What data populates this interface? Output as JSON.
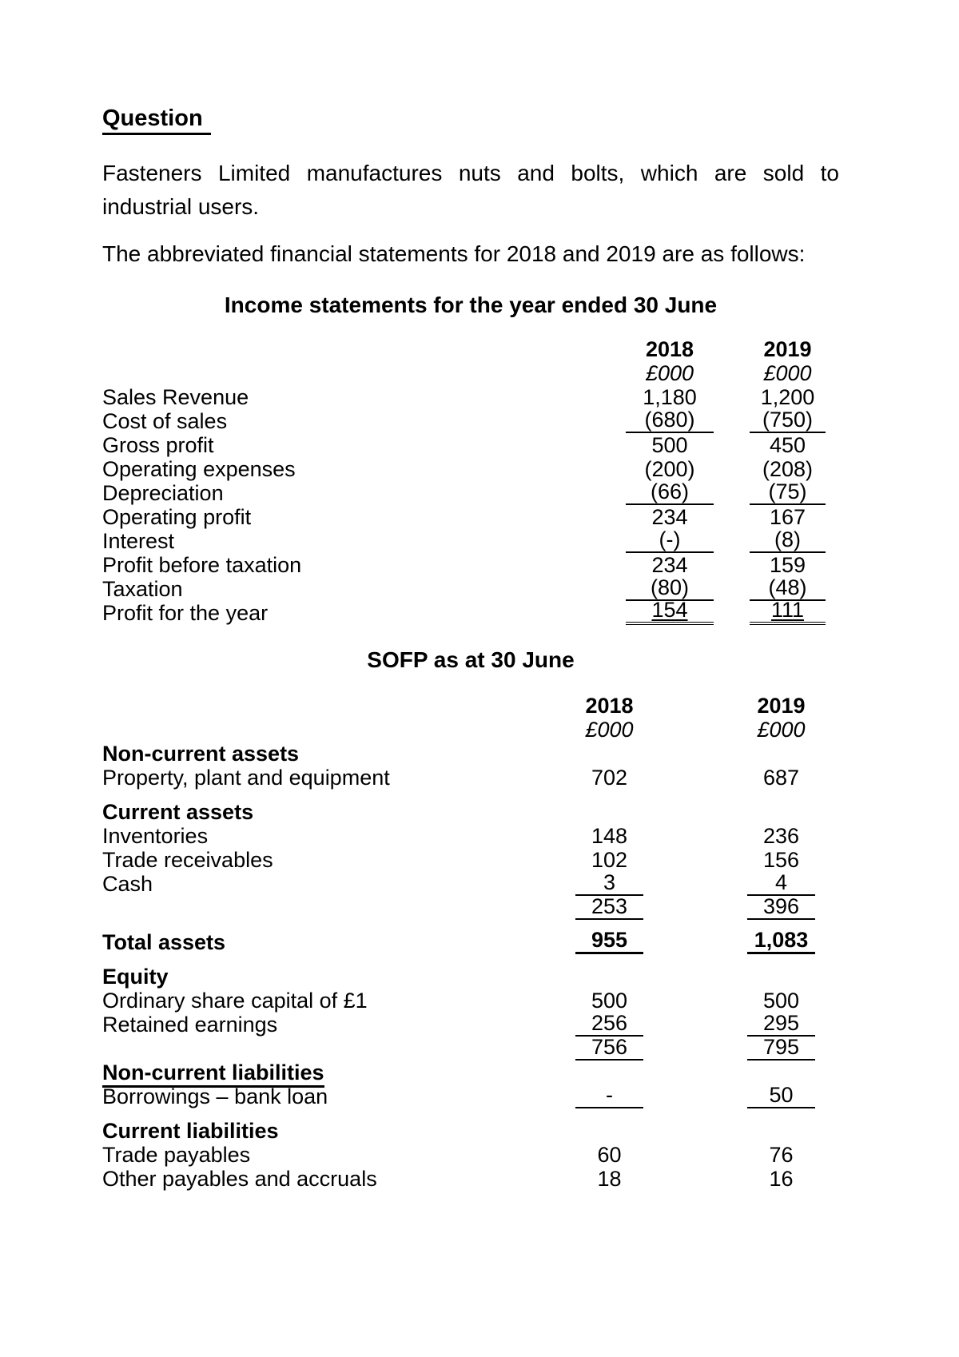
{
  "doc": {
    "heading": "Question",
    "intro": "Fasteners Limited manufactures nuts and bolts, which are sold to industrial users.",
    "statements_line": "The abbreviated financial statements for 2018 and 2019 are as follows:"
  },
  "income_statement": {
    "title": "Income statements for the year ended 30 June",
    "col_headers": [
      "2018",
      "2019"
    ],
    "unit_headers": [
      "£000",
      "£000"
    ],
    "rows": [
      {
        "label": "Sales Revenue",
        "v2018": "1,180",
        "v2019": "1,200",
        "label_style": "plain",
        "value_style": "plain",
        "spaced": false
      },
      {
        "label": "Cost of sales",
        "v2018": "(680)",
        "v2019": "(750)",
        "label_style": "plain",
        "value_style": "underline",
        "spaced": false
      },
      {
        "label": "Gross profit",
        "v2018": "500",
        "v2019": "450",
        "label_style": "plain",
        "value_style": "plain",
        "spaced": false
      },
      {
        "label": "Operating expenses",
        "v2018": "(200)",
        "v2019": "(208)",
        "label_style": "plain",
        "value_style": "plain",
        "spaced": false
      },
      {
        "label": "Depreciation",
        "v2018": "(66)",
        "v2019": "(75)",
        "label_style": "plain",
        "value_style": "underline",
        "spaced": false
      },
      {
        "label": "Operating profit",
        "v2018": "234",
        "v2019": "167",
        "label_style": "plain",
        "value_style": "plain",
        "spaced": false
      },
      {
        "label": "Interest",
        "v2018": "(-)",
        "v2019": "(8)",
        "label_style": "plain",
        "value_style": "underline",
        "spaced": false
      },
      {
        "label": "Profit before taxation",
        "v2018": "234",
        "v2019": "159",
        "label_style": "plain",
        "value_style": "plain",
        "spaced": false
      },
      {
        "label": "Taxation",
        "v2018": "(80)",
        "v2019": "(48)",
        "label_style": "plain",
        "value_style": "underline",
        "spaced": false
      },
      {
        "label": "Profit for the year",
        "v2018": "154",
        "v2019": "111",
        "label_style": "plain",
        "value_style": "double",
        "spaced": false
      }
    ]
  },
  "sofp": {
    "title": "SOFP as at 30 June",
    "col_headers": [
      "2018",
      "2019"
    ],
    "unit_headers": [
      "£000",
      "£000"
    ],
    "rows": [
      {
        "label": "Non-current assets",
        "v2018": "",
        "v2019": "",
        "label_style": "bold",
        "value_style": "plain",
        "spaced": false
      },
      {
        "label": "Property, plant and equipment",
        "v2018": "702",
        "v2019": "687",
        "label_style": "plain",
        "value_style": "plain",
        "spaced": false
      },
      {
        "label": "Current assets",
        "v2018": "",
        "v2019": "",
        "label_style": "bold",
        "value_style": "plain",
        "spaced": true
      },
      {
        "label": "Inventories",
        "v2018": "148",
        "v2019": "236",
        "label_style": "plain",
        "value_style": "plain",
        "spaced": false
      },
      {
        "label": "Trade receivables",
        "v2018": "102",
        "v2019": "156",
        "label_style": "plain",
        "value_style": "plain",
        "spaced": false
      },
      {
        "label": "Cash",
        "v2018": "3",
        "v2019": "4",
        "label_style": "plain",
        "value_style": "underline",
        "spaced": false
      },
      {
        "label": "",
        "v2018": "253",
        "v2019": "396",
        "label_style": "plain",
        "value_style": "underline",
        "spaced": false
      },
      {
        "label": "Total assets",
        "v2018": "955",
        "v2019": "1,083",
        "label_style": "bold",
        "value_style": "total",
        "spaced": true
      },
      {
        "label": "Equity",
        "v2018": "",
        "v2019": "",
        "label_style": "bold",
        "value_style": "plain",
        "spaced": true
      },
      {
        "label": "Ordinary share capital of £1",
        "v2018": "500",
        "v2019": "500",
        "label_style": "plain",
        "value_style": "plain",
        "spaced": false
      },
      {
        "label": "Retained earnings",
        "v2018": "256",
        "v2019": "295",
        "label_style": "plain",
        "value_style": "underline",
        "spaced": false
      },
      {
        "label": "",
        "v2018": "756",
        "v2019": "795",
        "label_style": "plain",
        "value_style": "underline",
        "spaced": false
      },
      {
        "label": "Non-current liabilities",
        "v2018": "",
        "v2019": "",
        "label_style": "bold-underline",
        "value_style": "plain",
        "spaced": false
      },
      {
        "label": "Borrowings – bank loan",
        "v2018": "-",
        "v2019": "50",
        "label_style": "plain",
        "value_style": "underline",
        "spaced": false
      },
      {
        "label": "Current liabilities",
        "v2018": "",
        "v2019": "",
        "label_style": "bold",
        "value_style": "plain",
        "spaced": true
      },
      {
        "label": "Trade payables",
        "v2018": "60",
        "v2019": "76",
        "label_style": "plain",
        "value_style": "plain",
        "spaced": false
      },
      {
        "label": "Other payables and accruals",
        "v2018": "18",
        "v2019": "16",
        "label_style": "plain",
        "value_style": "plain",
        "spaced": false
      }
    ]
  }
}
